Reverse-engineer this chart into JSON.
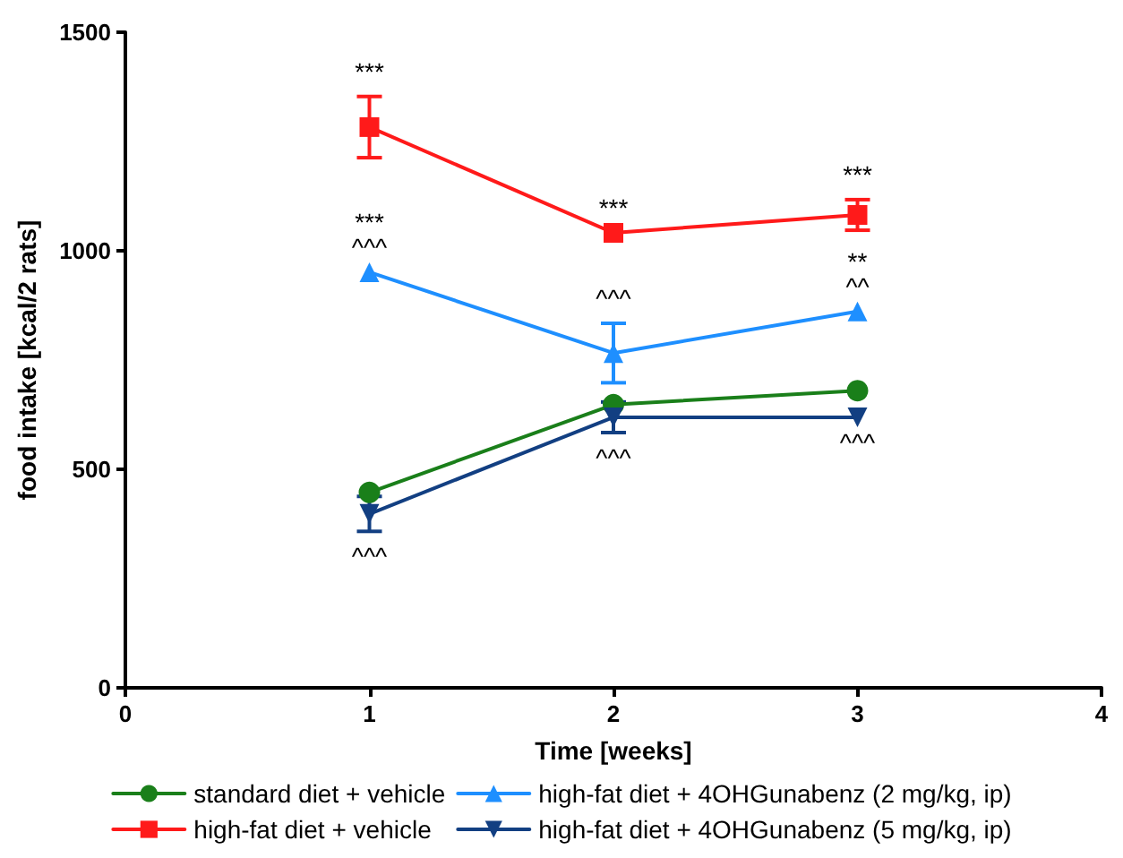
{
  "chart_data": {
    "type": "line",
    "xlabel": "Time [weeks]",
    "ylabel": "food intake [kcal/2 rats]",
    "xlim": [
      0,
      4
    ],
    "xticks": [
      0,
      1,
      2,
      3,
      4
    ],
    "ylim": [
      0,
      1500
    ],
    "yticks": [
      0,
      500,
      1000,
      1500
    ],
    "grid": false,
    "legend": "bottom",
    "line_style": "solid",
    "series": [
      {
        "name": "standard diet + vehicle",
        "color": "#1a7f1a",
        "marker": "circle",
        "x": [
          1,
          2,
          3
        ],
        "values": [
          447,
          648,
          680
        ],
        "errors": [
          null,
          null,
          null
        ]
      },
      {
        "name": "high-fat diet + vehicle",
        "color": "#ff1a1a",
        "marker": "square",
        "x": [
          1,
          2,
          3
        ],
        "values": [
          1283,
          1041,
          1082
        ],
        "errors": [
          70,
          null,
          35
        ]
      },
      {
        "name": "high-fat diet + 4OHGunabenz (2 mg/kg, ip)",
        "color": "#1e8fff",
        "marker": "triangle",
        "x": [
          1,
          2,
          3
        ],
        "values": [
          951,
          766,
          861
        ],
        "errors": [
          null,
          68,
          null
        ]
      },
      {
        "name": "high-fat diet + 4OHGunabenz (5 mg/kg, ip)",
        "color": "#123f82",
        "marker": "triangle-down",
        "x": [
          1,
          2,
          3
        ],
        "values": [
          398,
          619,
          619
        ],
        "errors": [
          40,
          35,
          null
        ]
      }
    ],
    "annotations": [
      {
        "text": "***",
        "x": 1,
        "y": 1283
      },
      {
        "text": "***",
        "x": 1,
        "y": 951
      },
      {
        "text": "^^^",
        "x": 1,
        "y": 951
      },
      {
        "text": "^^^",
        "x": 1,
        "y": 398
      },
      {
        "text": "***",
        "x": 2,
        "y": 1041
      },
      {
        "text": "^^^",
        "x": 2,
        "y": 766
      },
      {
        "text": "^^^",
        "x": 2,
        "y": 619
      },
      {
        "text": "***",
        "x": 3,
        "y": 1082
      },
      {
        "text": "**",
        "x": 3,
        "y": 861
      },
      {
        "text": "^^",
        "x": 3,
        "y": 861
      },
      {
        "text": "^^^",
        "x": 3,
        "y": 619
      }
    ]
  }
}
